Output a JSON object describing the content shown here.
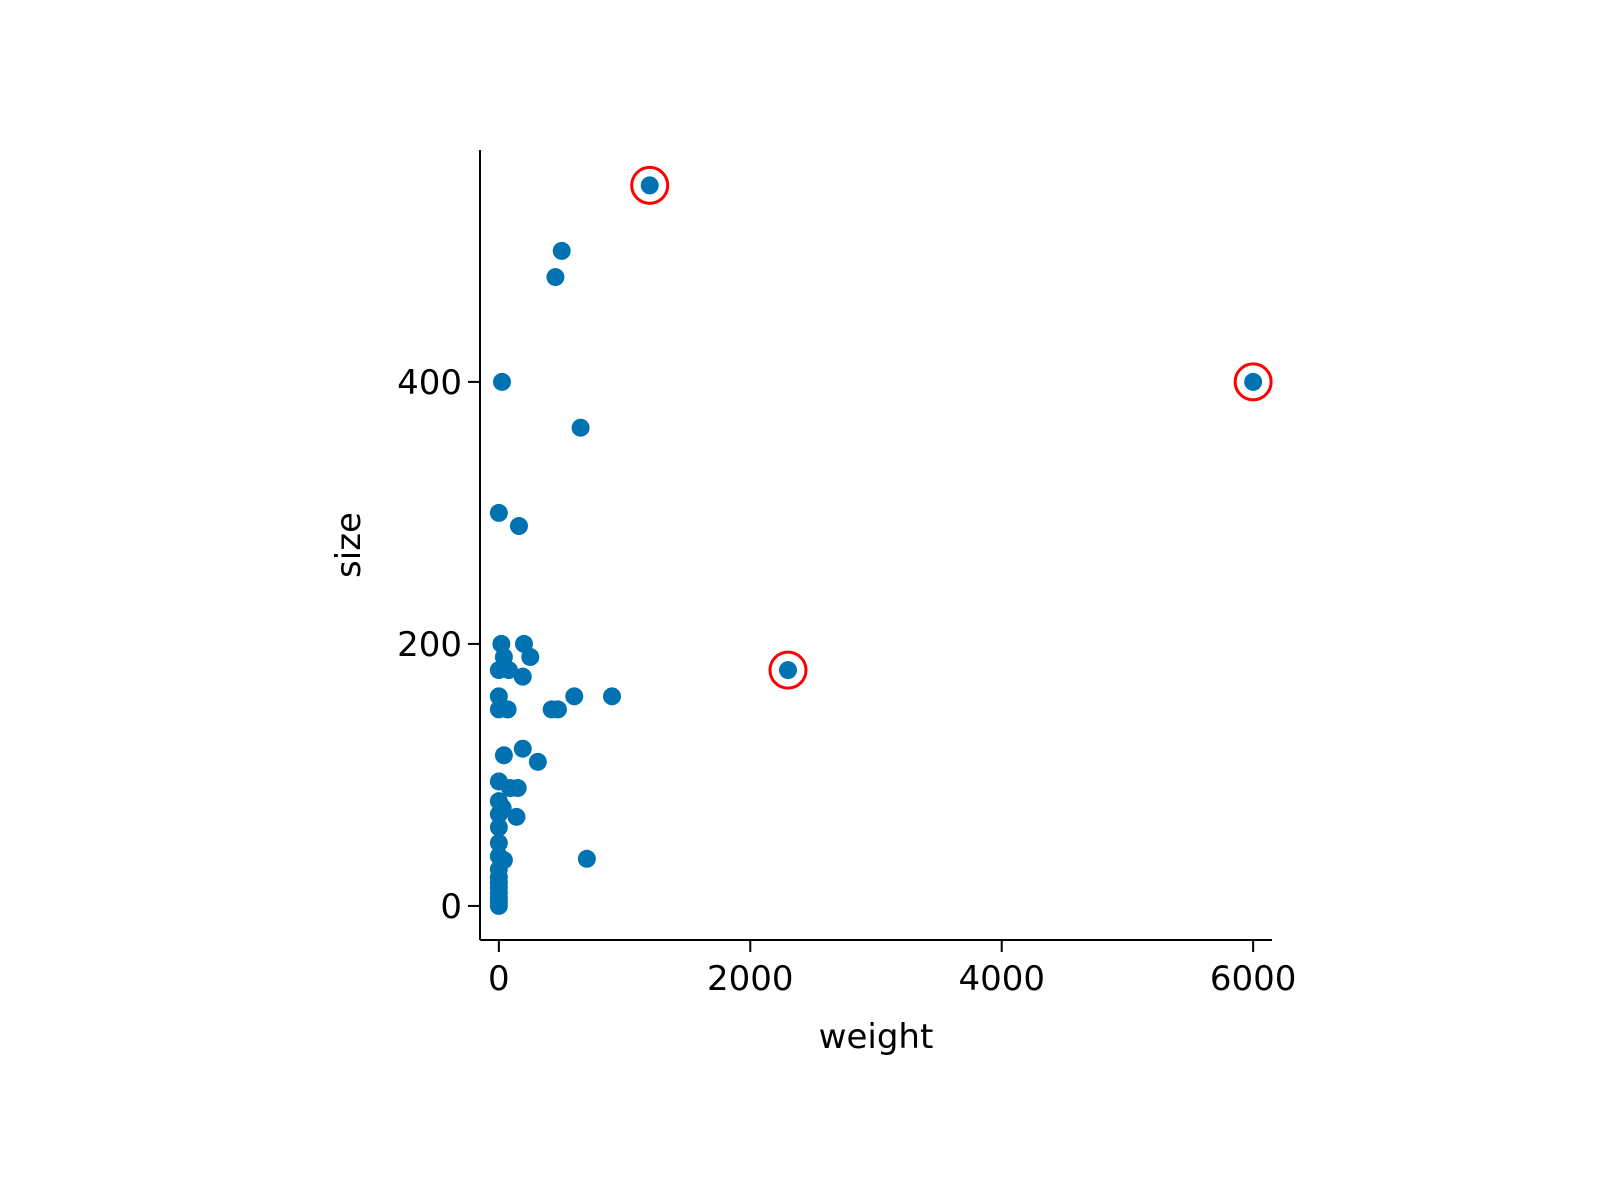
{
  "chart_data": {
    "type": "scatter",
    "title": "",
    "xlabel": "weight",
    "ylabel": "size",
    "xlim": [
      -150,
      6150
    ],
    "ylim": [
      -26,
      577
    ],
    "x_ticks": [
      0,
      2000,
      4000,
      6000
    ],
    "y_ticks": [
      0,
      200,
      400
    ],
    "x_tick_labels": [
      "0",
      "2000",
      "4000",
      "6000"
    ],
    "y_tick_labels": [
      "0",
      "200",
      "400"
    ],
    "grid": false,
    "legend": "none",
    "colors": {
      "point": "#0072b2",
      "highlight": "#ff0000",
      "axis": "#000000"
    },
    "series": [
      {
        "points": [
          [
            1200,
            550
          ],
          [
            500,
            500
          ],
          [
            450,
            480
          ],
          [
            6000,
            400
          ],
          [
            25,
            400
          ],
          [
            650,
            365
          ],
          [
            0,
            300
          ],
          [
            160,
            290
          ],
          [
            20,
            200
          ],
          [
            200,
            200
          ],
          [
            40,
            190
          ],
          [
            250,
            190
          ],
          [
            0,
            180
          ],
          [
            80,
            180
          ],
          [
            2300,
            180
          ],
          [
            190,
            175
          ],
          [
            0,
            160
          ],
          [
            600,
            160
          ],
          [
            900,
            160
          ],
          [
            0,
            150
          ],
          [
            70,
            150
          ],
          [
            420,
            150
          ],
          [
            470,
            150
          ],
          [
            190,
            120
          ],
          [
            40,
            115
          ],
          [
            310,
            110
          ],
          [
            0,
            95
          ],
          [
            90,
            90
          ],
          [
            150,
            90
          ],
          [
            0,
            80
          ],
          [
            30,
            75
          ],
          [
            0,
            70
          ],
          [
            140,
            68
          ],
          [
            0,
            60
          ],
          [
            0,
            48
          ],
          [
            0,
            38
          ],
          [
            40,
            35
          ],
          [
            700,
            36
          ],
          [
            0,
            28
          ],
          [
            0,
            22
          ],
          [
            0,
            18
          ],
          [
            0,
            14
          ],
          [
            0,
            10
          ],
          [
            0,
            6
          ],
          [
            0,
            3
          ],
          [
            0,
            0
          ]
        ]
      }
    ],
    "highlighted_points": [
      [
        1200,
        550
      ],
      [
        6000,
        400
      ],
      [
        2300,
        180
      ]
    ]
  }
}
